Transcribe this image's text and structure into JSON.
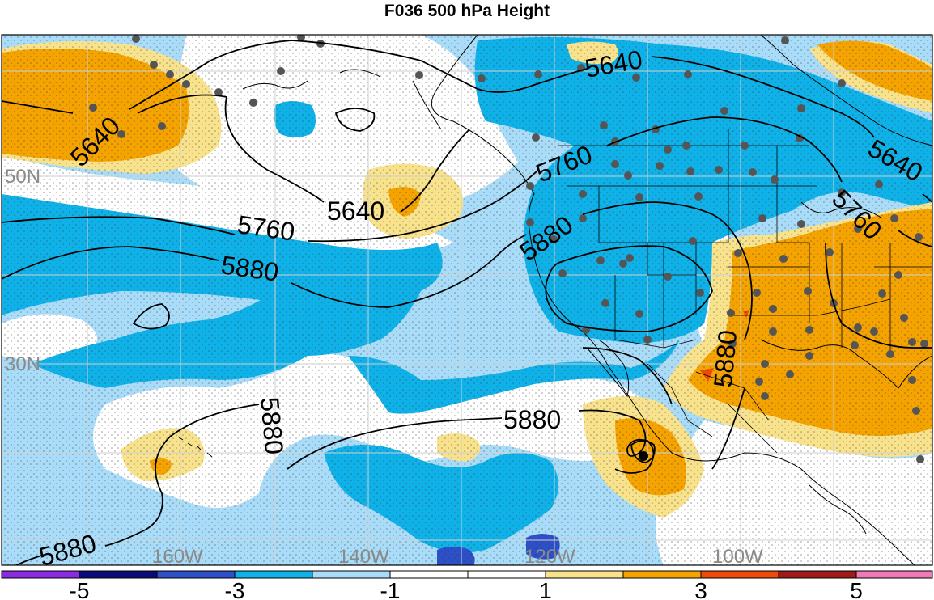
{
  "title": "F036 500 hPa Height",
  "anomaly_colors": {
    "neg5": "#8a2be2",
    "neg4": "#0a0a7a",
    "neg3": "#2d50c8",
    "neg2": "#0fb2e8",
    "neg1": "#a8dcf8",
    "zero": "#ffffff",
    "pos1": "#f8e38c",
    "pos2": "#f5a300",
    "pos3": "#f04a0a",
    "pos4": "#a01a1a",
    "pos5": "#f07ab8"
  },
  "contour_labels": [
    "5640",
    "5640",
    "5640",
    "5640",
    "5760",
    "5760",
    "5760",
    "5880",
    "5880",
    "5880",
    "5880",
    "5880",
    "5880"
  ],
  "lat_labels": [
    "50N",
    "30N"
  ],
  "lon_labels": [
    "160W",
    "140W",
    "120W",
    "100W"
  ],
  "colorbar": {
    "tick_labels": [
      "-5",
      "-3",
      "-1",
      "1",
      "3",
      "5"
    ]
  }
}
